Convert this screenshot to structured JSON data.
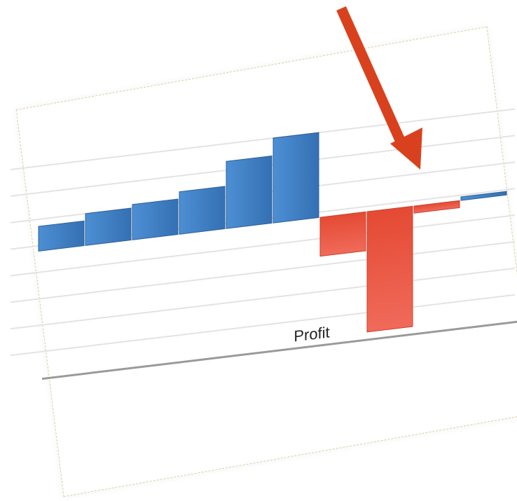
{
  "chart_data": {
    "type": "bar",
    "title": "",
    "xlabel": "Profit",
    "ylabel": "",
    "categories": [
      "",
      "",
      "",
      "",
      "",
      "",
      "",
      "",
      "",
      ""
    ],
    "values": [
      35,
      45,
      50,
      60,
      95,
      120,
      -55,
      -170,
      -10,
      5
    ],
    "ylim": [
      -180,
      120
    ],
    "grid": true,
    "legend": "none"
  },
  "colors": {
    "positive": "#3f7fc4",
    "negative": "#e5533c",
    "arrow": "#d9411e",
    "grid": "#e3e3e3",
    "baseline": "#9a9a9a"
  },
  "annotation": {
    "type": "arrow",
    "target_bar_index": 7
  }
}
